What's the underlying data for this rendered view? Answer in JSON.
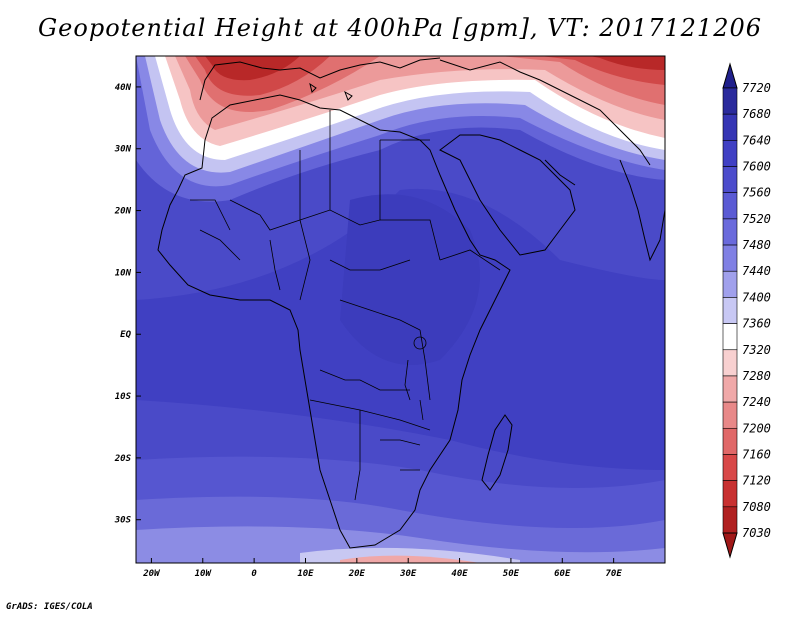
{
  "title": "Geopotential Height at 400hPa [gpm], VT: 2017121206",
  "credit": "GrADS: IGES/COLA",
  "map": {
    "lon_range": [
      -23,
      80
    ],
    "lat_range": [
      -37,
      45
    ],
    "lon_ticks": [
      {
        "value": -20,
        "label": "20W"
      },
      {
        "value": -10,
        "label": "10W"
      },
      {
        "value": 0,
        "label": "0"
      },
      {
        "value": 10,
        "label": "10E"
      },
      {
        "value": 20,
        "label": "20E"
      },
      {
        "value": 30,
        "label": "30E"
      },
      {
        "value": 40,
        "label": "40E"
      },
      {
        "value": 50,
        "label": "50E"
      },
      {
        "value": 60,
        "label": "60E"
      },
      {
        "value": 70,
        "label": "70E"
      }
    ],
    "lat_ticks": [
      {
        "value": 40,
        "label": "40N"
      },
      {
        "value": 30,
        "label": "30N"
      },
      {
        "value": 20,
        "label": "20N"
      },
      {
        "value": 10,
        "label": "10N"
      },
      {
        "value": 0,
        "label": "EQ"
      },
      {
        "value": -10,
        "label": "10S"
      },
      {
        "value": -20,
        "label": "20S"
      },
      {
        "value": -30,
        "label": "30S"
      }
    ]
  },
  "colorbar": {
    "labels": [
      "7720",
      "7680",
      "7640",
      "7600",
      "7560",
      "7520",
      "7480",
      "7440",
      "7400",
      "7360",
      "7320",
      "7280",
      "7240",
      "7200",
      "7160",
      "7120",
      "7080",
      "7030"
    ],
    "colors": [
      "#2a2a9c",
      "#3535b4",
      "#4040c4",
      "#4c4ccc",
      "#5a5ad4",
      "#6a6adc",
      "#8080e4",
      "#a0a0ec",
      "#c8c8f4",
      "#ffffff",
      "#f8d0d0",
      "#f0a8a8",
      "#e88888",
      "#e06868",
      "#d84848",
      "#c83030",
      "#b02020"
    ],
    "cap_top_color": "#20208c",
    "cap_bottom_color": "#a01818"
  }
}
